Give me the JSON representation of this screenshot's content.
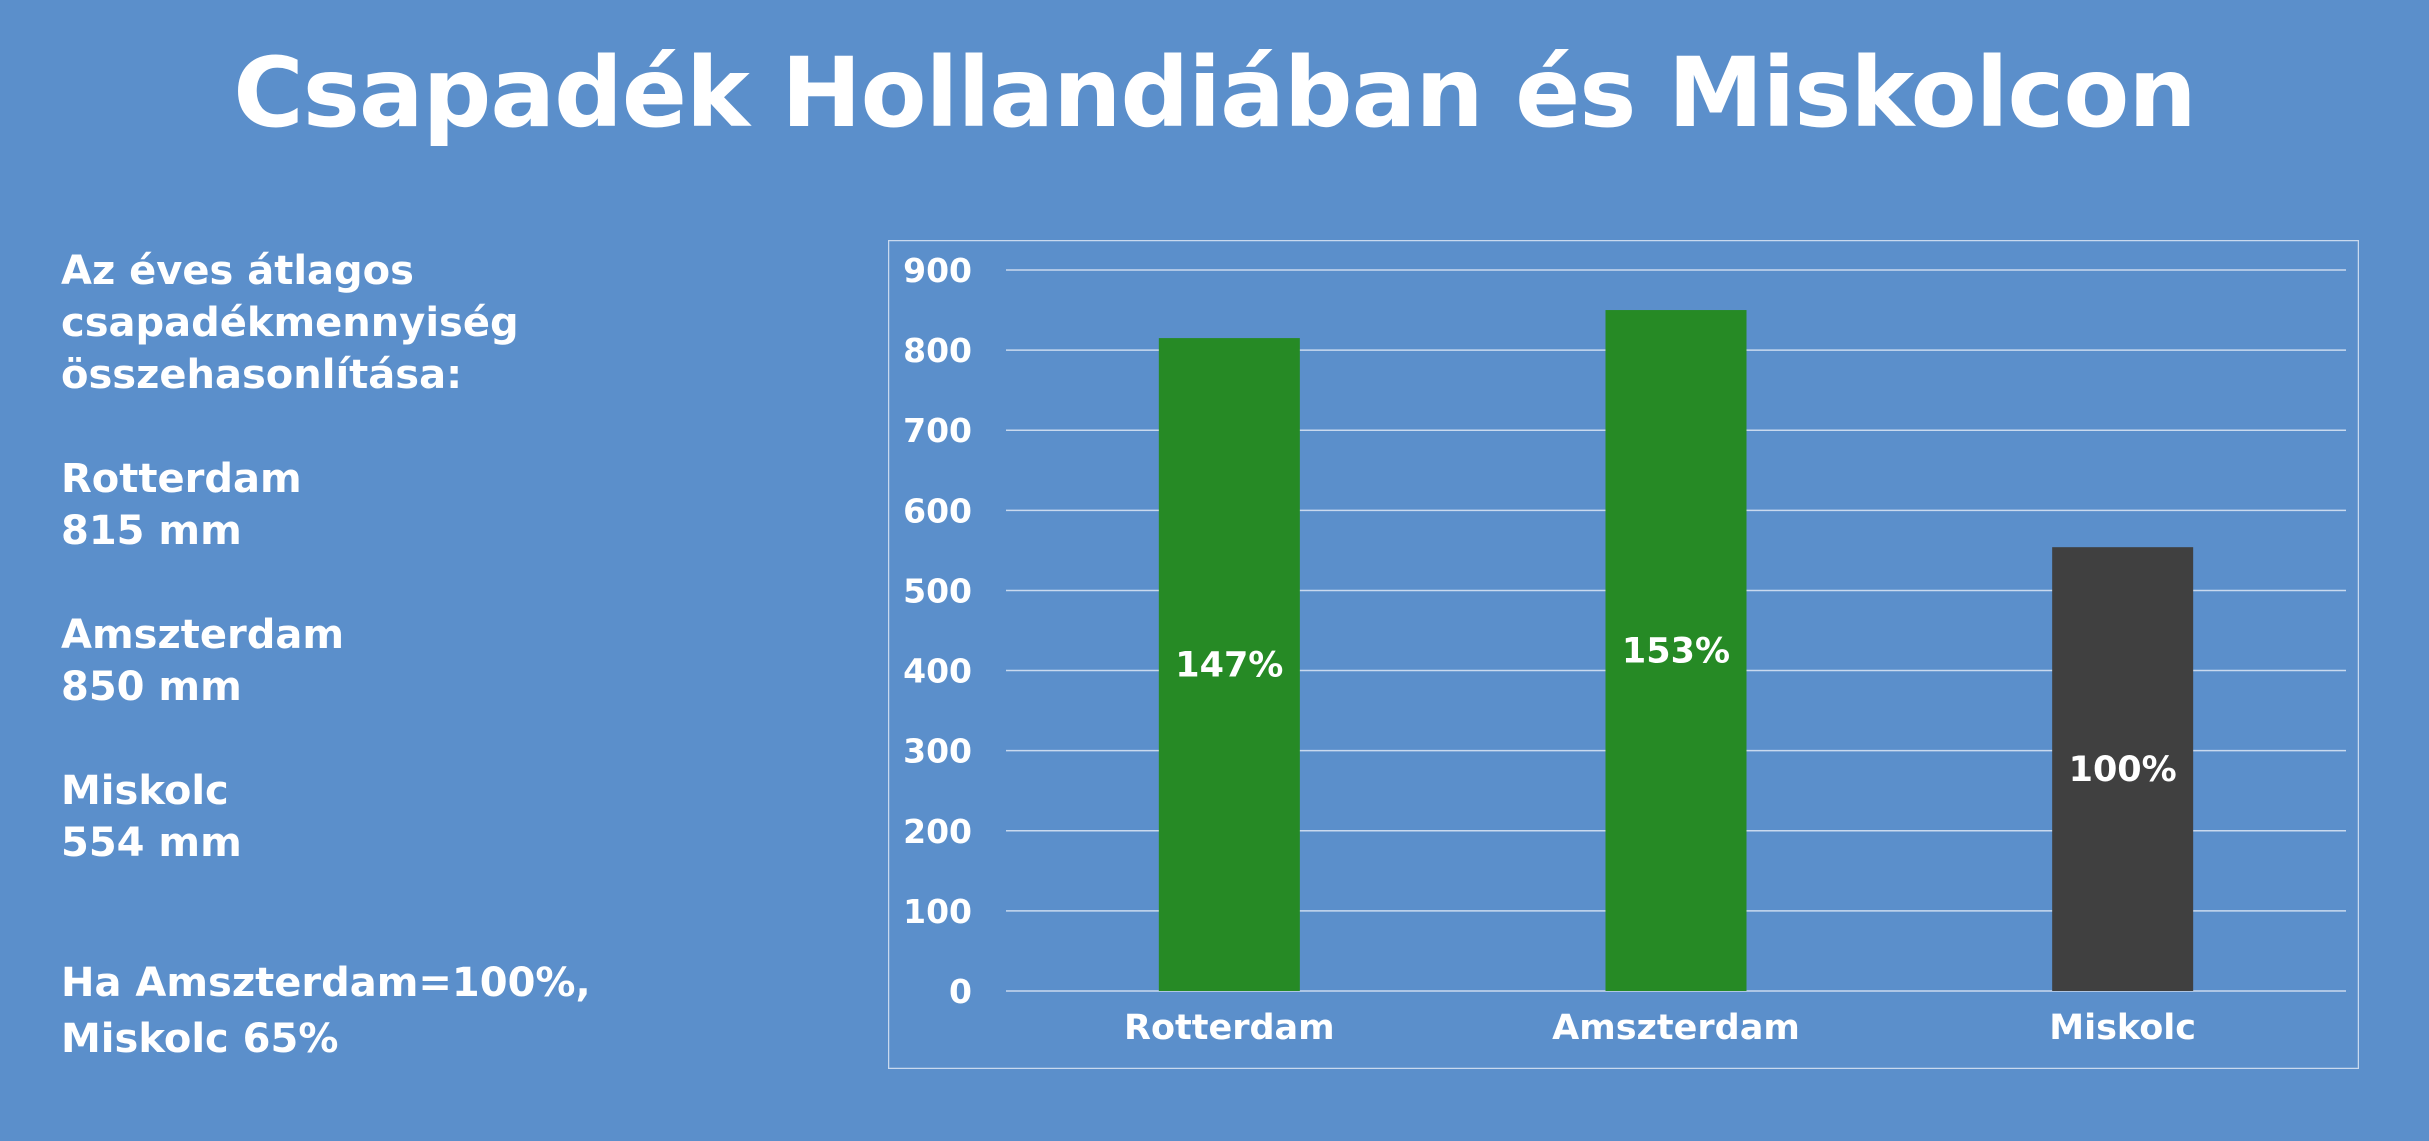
{
  "header": {
    "title": "Csapadék Hollandiában és Miskolcon"
  },
  "sidebar": {
    "intro_lines": [
      "Az éves átlagos",
      "csapadékmennyiség",
      "összehasonlítása:"
    ],
    "cities": [
      {
        "name": "Rotterdam",
        "value": "815 mm"
      },
      {
        "name": "Amszterdam",
        "value": "850 mm"
      },
      {
        "name": "Miskolc",
        "value": "554 mm"
      }
    ],
    "note_lines": [
      "Ha Amszterdam=100%,",
      "Miskolc 65%"
    ]
  },
  "chart_data": {
    "type": "bar",
    "categories": [
      "Rotterdam",
      "Amszterdam",
      "Miskolc"
    ],
    "values": [
      815,
      850,
      554
    ],
    "data_labels": [
      "147%",
      "153%",
      "100%"
    ],
    "bar_colors": [
      "#268a25",
      "#268a25",
      "#404040"
    ],
    "ylim": [
      0,
      900
    ],
    "yticks": [
      0,
      100,
      200,
      300,
      400,
      500,
      600,
      700,
      800,
      900
    ],
    "grid": true,
    "legend": "none"
  }
}
